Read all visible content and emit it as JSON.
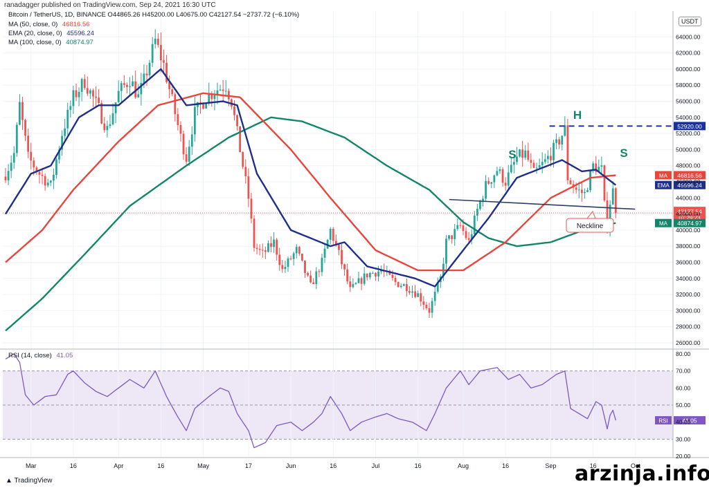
{
  "header": {
    "published_by": "ranadagger published on TradingView.com, Sep 24, 2021 16:30 UTC",
    "ohlc_line": "Bitcoin / TetherUS, 1D, BINANCE  O44865.26  H45200.00  L40675.00  C42127.54  −2737.72 (−6.10%)",
    "ind1_label": "MA (50, close, 0)",
    "ind1_value": "46816.56",
    "ind2_label": "EMA (20, close, 0)",
    "ind2_value": "45596.24",
    "ind3_label": "MA (100, close, 0)",
    "ind3_value": "40874.97",
    "currency": "USDT"
  },
  "colors": {
    "up": "#26a69a",
    "down": "#ef5350",
    "ma50": "#e8453c",
    "ema20": "#1e2f8a",
    "ma100": "#11866b",
    "rsi": "#7e57c2",
    "rsi_band": "#ede7f6",
    "neckline": "#2a3e66",
    "level": "#1a2fa0"
  },
  "annotations": {
    "left_shoulder": "S",
    "head": "H",
    "right_shoulder": "S",
    "neckline_label": "Neckline",
    "level_label": "52920.00"
  },
  "price_tags": {
    "ma50": {
      "label": "MA",
      "value": "46816.56"
    },
    "ema20": {
      "label": "EMA",
      "value": "45596.24"
    },
    "last": {
      "value": "42127.54",
      "countdown": "07:29:23"
    },
    "ma100": {
      "label": "MA",
      "value": "40874.97"
    }
  },
  "rsi_legend": {
    "label": "RSI (14, close)",
    "value": "41.05",
    "tag": "RSI"
  },
  "footer": {
    "tv_logo": "TradingView",
    "watermark": "arzinja.info"
  },
  "chart_data": {
    "type": "candlestick",
    "title": "Bitcoin / TetherUS, 1D, BINANCE",
    "price_axis": {
      "min": 26000,
      "max": 66000,
      "ticks": [
        "26000.00",
        "28000.00",
        "30000.00",
        "32000.00",
        "34000.00",
        "36000.00",
        "38000.00",
        "40000.00",
        "42000.00",
        "44000.00",
        "46000.00",
        "48000.00",
        "50000.00",
        "52000.00",
        "54000.00",
        "56000.00",
        "58000.00",
        "60000.00",
        "62000.00",
        "64000.00"
      ]
    },
    "rsi_axis": {
      "min": 20,
      "max": 80,
      "ticks": [
        "20.00",
        "30.00",
        "40.00",
        "50.00",
        "60.00",
        "70.00",
        "80.00"
      ],
      "band": [
        30,
        70
      ]
    },
    "time_axis": {
      "start": "2021-02-20",
      "ticks": [
        {
          "date": "2021-03-01",
          "label": "Mar"
        },
        {
          "date": "2021-03-16",
          "label": "16"
        },
        {
          "date": "2021-04-01",
          "label": "Apr"
        },
        {
          "date": "2021-04-16",
          "label": "16"
        },
        {
          "date": "2021-05-01",
          "label": "May"
        },
        {
          "date": "2021-05-17",
          "label": "17"
        },
        {
          "date": "2021-06-01",
          "label": "Jun"
        },
        {
          "date": "2021-06-16",
          "label": "16"
        },
        {
          "date": "2021-07-01",
          "label": "Jul"
        },
        {
          "date": "2021-07-16",
          "label": "16"
        },
        {
          "date": "2021-08-01",
          "label": "Aug"
        },
        {
          "date": "2021-08-16",
          "label": "16"
        },
        {
          "date": "2021-09-01",
          "label": "Sep"
        },
        {
          "date": "2021-09-16",
          "label": "16"
        },
        {
          "date": "2021-10-01",
          "label": "Oct"
        }
      ]
    },
    "close_anchors": [
      [
        "2021-02-20",
        47000
      ],
      [
        "2021-02-23",
        49500
      ],
      [
        "2021-02-25",
        55500
      ],
      [
        "2021-02-28",
        49000
      ],
      [
        "2021-03-04",
        47000
      ],
      [
        "2021-03-08",
        45500
      ],
      [
        "2021-03-12",
        52000
      ],
      [
        "2021-03-16",
        56500
      ],
      [
        "2021-03-20",
        58500
      ],
      [
        "2021-03-25",
        55000
      ],
      [
        "2021-03-28",
        52500
      ],
      [
        "2021-04-01",
        57000
      ],
      [
        "2021-04-05",
        58800
      ],
      [
        "2021-04-08",
        56500
      ],
      [
        "2021-04-10",
        58500
      ],
      [
        "2021-04-14",
        63500
      ],
      [
        "2021-04-17",
        60500
      ],
      [
        "2021-04-20",
        56000
      ],
      [
        "2021-04-23",
        51500
      ],
      [
        "2021-04-25",
        49000
      ],
      [
        "2021-04-28",
        54500
      ],
      [
        "2021-05-02",
        56500
      ],
      [
        "2021-05-06",
        57500
      ],
      [
        "2021-05-09",
        58000
      ],
      [
        "2021-05-11",
        56000
      ],
      [
        "2021-05-14",
        50000
      ],
      [
        "2021-05-17",
        44000
      ],
      [
        "2021-05-19",
        38000
      ],
      [
        "2021-05-22",
        37000
      ],
      [
        "2021-05-26",
        38500
      ],
      [
        "2021-05-29",
        35000
      ],
      [
        "2021-06-03",
        37500
      ],
      [
        "2021-06-08",
        33000
      ],
      [
        "2021-06-12",
        36000
      ],
      [
        "2021-06-15",
        40000
      ],
      [
        "2021-06-18",
        37000
      ],
      [
        "2021-06-22",
        32500
      ],
      [
        "2021-06-25",
        33500
      ],
      [
        "2021-06-28",
        34500
      ],
      [
        "2021-07-03",
        35000
      ],
      [
        "2021-07-08",
        33500
      ],
      [
        "2021-07-12",
        33000
      ],
      [
        "2021-07-16",
        32000
      ],
      [
        "2021-07-20",
        30000
      ],
      [
        "2021-07-24",
        34000
      ],
      [
        "2021-07-26",
        38500
      ],
      [
        "2021-07-31",
        40500
      ],
      [
        "2021-08-03",
        38500
      ],
      [
        "2021-08-06",
        42500
      ],
      [
        "2021-08-09",
        45500
      ],
      [
        "2021-08-13",
        47500
      ],
      [
        "2021-08-16",
        46000
      ],
      [
        "2021-08-20",
        49000
      ],
      [
        "2021-08-23",
        49500
      ],
      [
        "2021-08-26",
        47000
      ],
      [
        "2021-08-30",
        48500
      ],
      [
        "2021-09-03",
        50500
      ],
      [
        "2021-09-06",
        52500
      ],
      [
        "2021-09-07",
        46500
      ],
      [
        "2021-09-10",
        45000
      ],
      [
        "2021-09-13",
        44500
      ],
      [
        "2021-09-16",
        48000
      ],
      [
        "2021-09-19",
        47500
      ],
      [
        "2021-09-20",
        43000
      ],
      [
        "2021-09-21",
        40700
      ],
      [
        "2021-09-22",
        43500
      ],
      [
        "2021-09-23",
        44865
      ],
      [
        "2021-09-24",
        42127
      ]
    ],
    "ma50_anchors": [
      [
        "2021-02-20",
        36000
      ],
      [
        "2021-03-05",
        40000
      ],
      [
        "2021-03-16",
        45000
      ],
      [
        "2021-04-01",
        51000
      ],
      [
        "2021-04-15",
        55500
      ],
      [
        "2021-05-01",
        57000
      ],
      [
        "2021-05-14",
        56500
      ],
      [
        "2021-06-01",
        50000
      ],
      [
        "2021-06-15",
        44000
      ],
      [
        "2021-07-01",
        37500
      ],
      [
        "2021-07-16",
        35000
      ],
      [
        "2021-08-01",
        35000
      ],
      [
        "2021-08-16",
        38500
      ],
      [
        "2021-09-01",
        44000
      ],
      [
        "2021-09-15",
        46500
      ],
      [
        "2021-09-24",
        46816
      ]
    ],
    "ema20_anchors": [
      [
        "2021-02-20",
        42000
      ],
      [
        "2021-03-01",
        47000
      ],
      [
        "2021-03-08",
        48000
      ],
      [
        "2021-03-18",
        54000
      ],
      [
        "2021-03-25",
        55500
      ],
      [
        "2021-04-01",
        55500
      ],
      [
        "2021-04-16",
        60000
      ],
      [
        "2021-04-25",
        55500
      ],
      [
        "2021-05-08",
        56000
      ],
      [
        "2021-05-13",
        55500
      ],
      [
        "2021-05-20",
        47000
      ],
      [
        "2021-06-01",
        40000
      ],
      [
        "2021-06-15",
        38000
      ],
      [
        "2021-06-20",
        38500
      ],
      [
        "2021-06-28",
        35500
      ],
      [
        "2021-07-15",
        34000
      ],
      [
        "2021-07-22",
        33000
      ],
      [
        "2021-08-01",
        37500
      ],
      [
        "2021-08-10",
        41500
      ],
      [
        "2021-08-20",
        46500
      ],
      [
        "2021-09-05",
        48700
      ],
      [
        "2021-09-12",
        47300
      ],
      [
        "2021-09-17",
        47500
      ],
      [
        "2021-09-24",
        45596
      ]
    ],
    "ma100_anchors": [
      [
        "2021-02-20",
        27500
      ],
      [
        "2021-03-05",
        31500
      ],
      [
        "2021-03-20",
        37000
      ],
      [
        "2021-04-05",
        43000
      ],
      [
        "2021-04-25",
        48000
      ],
      [
        "2021-05-10",
        51500
      ],
      [
        "2021-05-25",
        54000
      ],
      [
        "2021-06-05",
        53500
      ],
      [
        "2021-06-20",
        51500
      ],
      [
        "2021-07-05",
        48000
      ],
      [
        "2021-07-20",
        45000
      ],
      [
        "2021-08-01",
        41000
      ],
      [
        "2021-08-10",
        39000
      ],
      [
        "2021-08-20",
        38000
      ],
      [
        "2021-09-01",
        38500
      ],
      [
        "2021-09-15",
        40300
      ],
      [
        "2021-09-24",
        40874
      ]
    ],
    "rsi_anchors": [
      [
        "2021-02-20",
        77
      ],
      [
        "2021-02-23",
        80
      ],
      [
        "2021-02-25",
        75
      ],
      [
        "2021-02-27",
        56
      ],
      [
        "2021-03-02",
        50
      ],
      [
        "2021-03-06",
        55
      ],
      [
        "2021-03-10",
        56
      ],
      [
        "2021-03-14",
        68
      ],
      [
        "2021-03-16",
        70
      ],
      [
        "2021-03-20",
        63
      ],
      [
        "2021-03-24",
        58
      ],
      [
        "2021-03-28",
        55
      ],
      [
        "2021-04-01",
        60
      ],
      [
        "2021-04-05",
        65
      ],
      [
        "2021-04-10",
        60
      ],
      [
        "2021-04-14",
        70
      ],
      [
        "2021-04-18",
        55
      ],
      [
        "2021-04-22",
        43
      ],
      [
        "2021-04-25",
        35
      ],
      [
        "2021-04-28",
        48
      ],
      [
        "2021-05-03",
        55
      ],
      [
        "2021-05-07",
        60
      ],
      [
        "2021-05-10",
        58
      ],
      [
        "2021-05-13",
        45
      ],
      [
        "2021-05-17",
        35
      ],
      [
        "2021-05-19",
        25
      ],
      [
        "2021-05-23",
        28
      ],
      [
        "2021-05-27",
        38
      ],
      [
        "2021-06-01",
        40
      ],
      [
        "2021-06-05",
        35
      ],
      [
        "2021-06-09",
        40
      ],
      [
        "2021-06-12",
        45
      ],
      [
        "2021-06-15",
        55
      ],
      [
        "2021-06-19",
        45
      ],
      [
        "2021-06-22",
        35
      ],
      [
        "2021-06-26",
        40
      ],
      [
        "2021-07-01",
        43
      ],
      [
        "2021-07-05",
        45
      ],
      [
        "2021-07-09",
        42
      ],
      [
        "2021-07-14",
        40
      ],
      [
        "2021-07-19",
        35
      ],
      [
        "2021-07-22",
        45
      ],
      [
        "2021-07-26",
        60
      ],
      [
        "2021-07-31",
        70
      ],
      [
        "2021-08-03",
        62
      ],
      [
        "2021-08-07",
        70
      ],
      [
        "2021-08-13",
        72
      ],
      [
        "2021-08-17",
        65
      ],
      [
        "2021-08-21",
        68
      ],
      [
        "2021-08-25",
        60
      ],
      [
        "2021-08-29",
        62
      ],
      [
        "2021-09-03",
        68
      ],
      [
        "2021-09-06",
        70
      ],
      [
        "2021-09-08",
        48
      ],
      [
        "2021-09-11",
        45
      ],
      [
        "2021-09-14",
        42
      ],
      [
        "2021-09-17",
        52
      ],
      [
        "2021-09-19",
        50
      ],
      [
        "2021-09-21",
        36
      ],
      [
        "2021-09-22",
        44
      ],
      [
        "2021-09-23",
        47
      ],
      [
        "2021-09-24",
        41.05
      ]
    ],
    "neckline": [
      [
        "2021-07-29",
        43800
      ],
      [
        "2021-09-24",
        42600
      ]
    ],
    "resistance_level": {
      "from": "2021-09-03",
      "to": "2021-09-30",
      "value": 52920
    }
  }
}
